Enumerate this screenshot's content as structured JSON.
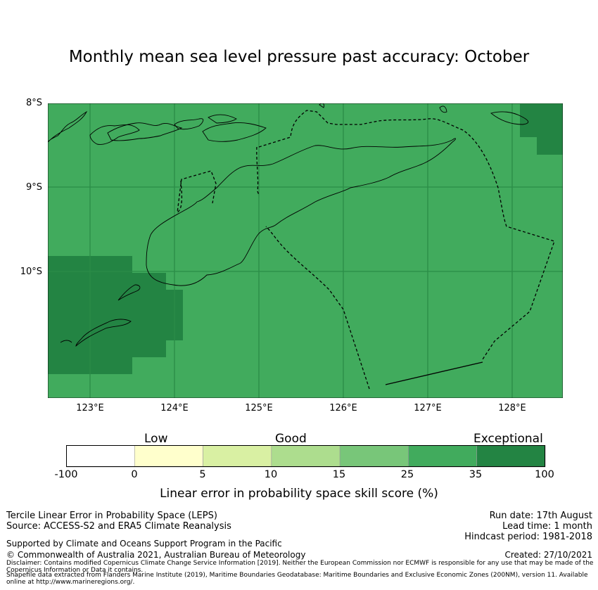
{
  "title": "Monthly mean sea level pressure past accuracy: October",
  "map": {
    "lat_labels": [
      "8°S",
      "9°S",
      "10°S"
    ],
    "lon_labels": [
      "123°E",
      "124°E",
      "125°E",
      "126°E",
      "127°E",
      "128°E"
    ],
    "lon_range": [
      122.5,
      128.6
    ],
    "lat_range": [
      -11.5,
      -8.0
    ],
    "grid_lines": true,
    "background_category": "25–35",
    "darker_category": "35–100",
    "colors": {
      "base": "#41ab5d",
      "dark": "#238443",
      "coast": "#000000",
      "grid": "#2b8c47"
    }
  },
  "colorbar": {
    "categories": [
      "Low",
      "Good",
      "Exceptional"
    ],
    "ticks": [
      "-100",
      "0",
      "5",
      "10",
      "15",
      "25",
      "35",
      "100"
    ],
    "colors": [
      "#ffffff",
      "#ffffcc",
      "#d9f0a3",
      "#addd8e",
      "#78c679",
      "#41ab5d",
      "#238443"
    ],
    "label": "Linear error in probability space skill score (%)"
  },
  "info": {
    "method": "Tercile Linear Error in Probability Space (LEPS)",
    "source": "Source: ACCESS-S2 and ERA5 Climate Reanalysis",
    "support": "Supported by Climate and Oceans Support Program in the Pacific",
    "copyright": "© Commonwealth of Australia 2021, Australian Bureau of Meteorology",
    "run_date": "Run date: 17th August",
    "lead_time": "Lead time: 1 month",
    "hindcast": "Hindcast period: 1981-2018",
    "created": "Created: 27/10/2021",
    "disclaimer": "Disclaimer: Contains modified Copernicus Climate Change Service Information [2019]. Neither the European Commission nor ECMWF is responsible for any use that may be made of the Copernicus Information or Data it contains.",
    "shapefile": "Shapefile data extracted from Flanders Marine Institute (2019), Maritime Boundaries Geodatabase: Maritime Boundaries and Exclusive Economic Zones (200NM), version 11. Available online at http://www.marineregions.org/."
  }
}
